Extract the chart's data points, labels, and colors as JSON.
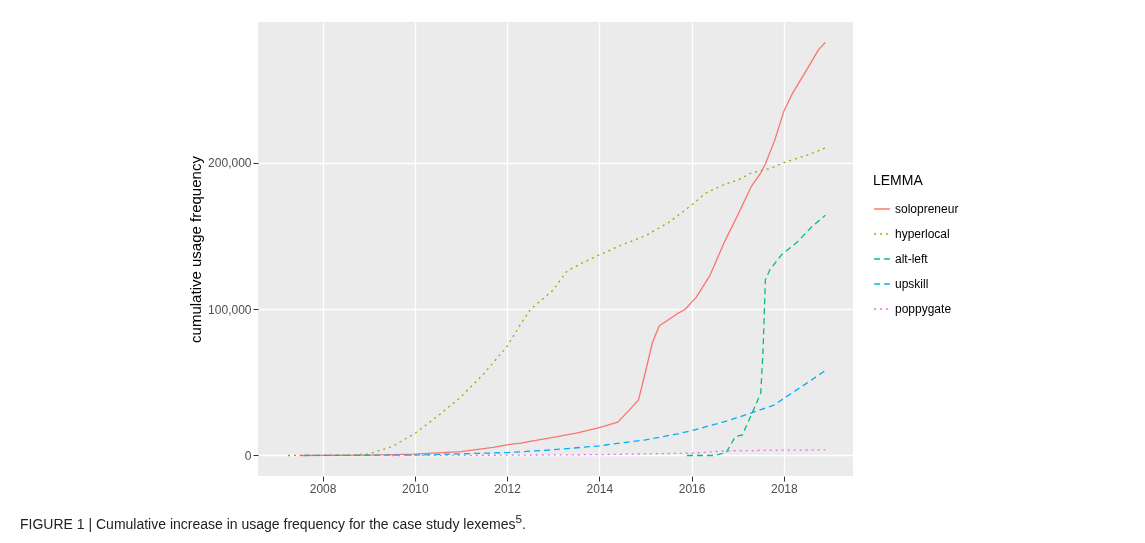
{
  "chart_data": {
    "type": "line",
    "ylabel": "cumulative usage frequency",
    "legend_title": "LEMMA",
    "legend": "right",
    "grid": true,
    "xlim": [
      2006.6,
      2019.5
    ],
    "xticks": [
      2008,
      2010,
      2012,
      2014,
      2016,
      2018
    ],
    "ylim": [
      -14000,
      296000
    ],
    "yticks": [
      0,
      {
        "value": 100000,
        "label": "100,000"
      },
      {
        "value": 200000,
        "label": "200,000"
      }
    ],
    "annotations": [
      "FIGURE 1 | Cumulative increase in usage frequency for the case study lexemes$^{5}$."
    ],
    "series": [
      {
        "name": "solopreneur",
        "color": "#f8766d",
        "line_style": "solid",
        "x": [
          2007.5,
          2009,
          2010,
          2011,
          2011.7,
          2012,
          2012.3,
          2012.5,
          2013,
          2013.5,
          2014,
          2014.4,
          2014.65,
          2014.85,
          2015,
          2015.15,
          2015.3,
          2015.5,
          2015.7,
          2015.85,
          2016.1,
          2016.4,
          2016.7,
          2017,
          2017.3,
          2017.5,
          2017.6,
          2017.8,
          2018,
          2018.2,
          2018.5,
          2018.75,
          2018.9
        ],
        "values": [
          0,
          300,
          1000,
          2700,
          5500,
          7300,
          8400,
          9600,
          12300,
          15300,
          19100,
          22800,
          31000,
          38000,
          57000,
          77000,
          88600,
          92700,
          97000,
          99500,
          108000,
          123000,
          145000,
          164000,
          184000,
          193000,
          199000,
          215000,
          235000,
          248000,
          263500,
          277000,
          282000
        ]
      },
      {
        "name": "hyperlocal",
        "color": "#a3a500",
        "line_style": "dotted",
        "x": [
          2007.25,
          2008.5,
          2009,
          2009.5,
          2010,
          2010.5,
          2011,
          2011.5,
          2012,
          2012.3,
          2012.5,
          2013,
          2013.3,
          2013.6,
          2014,
          2014.5,
          2015,
          2015.5,
          2016,
          2016.3,
          2016.7,
          2017,
          2017.3,
          2017.7,
          2018,
          2018.5,
          2018.9
        ],
        "values": [
          0,
          200,
          1000,
          6000,
          15000,
          27000,
          40000,
          56000,
          74500,
          90000,
          99500,
          113000,
          126000,
          131000,
          137000,
          144000,
          150000,
          159000,
          171000,
          179000,
          185000,
          188000,
          193000,
          196000,
          200000,
          205000,
          210000
        ]
      },
      {
        "name": "alt-left",
        "color": "#00bf7d",
        "line_style": "dashed",
        "x": [
          2015.9,
          2016.5,
          2016.75,
          2016.95,
          2017.1,
          2017.3,
          2017.5,
          2017.55,
          2017.6,
          2017.7,
          2017.95,
          2018.3,
          2018.6,
          2018.9
        ],
        "values": [
          0,
          0,
          2000,
          13000,
          14000,
          28000,
          42600,
          72000,
          120000,
          127000,
          137000,
          146000,
          156000,
          164000
        ]
      },
      {
        "name": "upskill",
        "color": "#00b0f6",
        "line_style": "dashed",
        "x": [
          2007.6,
          2010,
          2012,
          2013,
          2014,
          2015,
          2015.7,
          2016,
          2016.7,
          2017.2,
          2017.8,
          2018,
          2018.5,
          2018.9
        ],
        "values": [
          0,
          300,
          2000,
          3900,
          6600,
          10700,
          14800,
          16900,
          23000,
          28000,
          34600,
          39000,
          49400,
          58000
        ]
      },
      {
        "name": "poppygate",
        "color": "#e76bf3",
        "line_style": "dotted",
        "x": [
          2009.5,
          2012,
          2014,
          2016,
          2016.75,
          2018.9
        ],
        "values": [
          0,
          200,
          600,
          1600,
          3200,
          3900
        ]
      }
    ]
  }
}
